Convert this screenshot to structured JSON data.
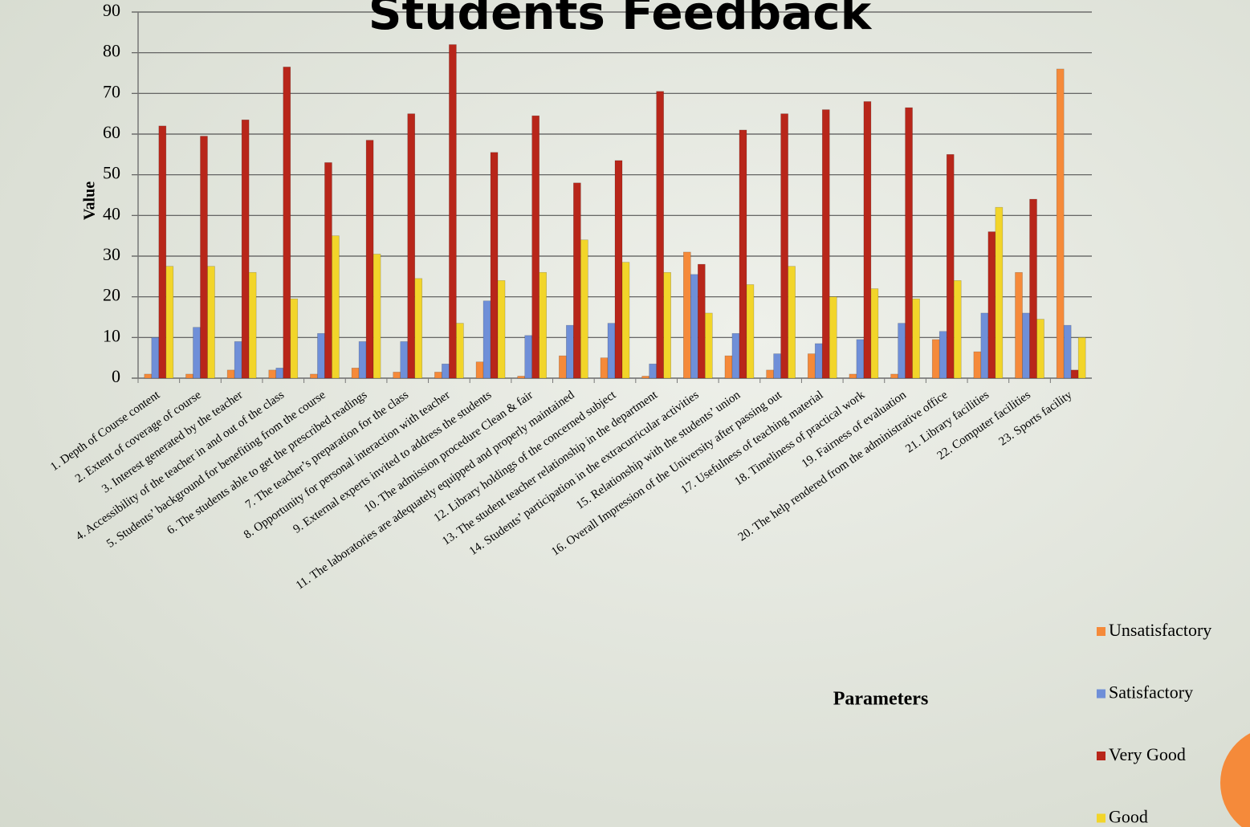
{
  "chart_data": {
    "type": "bar",
    "title": "Students Feedback",
    "y_label": "Value",
    "x_label": "Parameters",
    "categories": [
      "1. Depth of Course content",
      "2. Extent of coverage of course",
      "3. Interest generated by the teacher",
      "4. Accessibility of the teacher in and out of the class",
      "5. Students’ background for benefiting from the course",
      "6. The students able to get the prescribed readings",
      "7. The teacher’s preparation for the class",
      "8. Opportunity for personal interaction with teacher",
      "9. External experts invited to address the students",
      "10. The admission procedure Clean & fair",
      "11. The laboratories are adequately equipped and properly maintained",
      "12. Library holdings of the concerned subject",
      "13. The student teacher relationship in the department",
      "14. Students’ participation in the extracurricular activities",
      "15. Relationship with the students’ union",
      "16. Overall Impression of the University after passing out",
      "17. Usefulness of teaching material",
      "18. Timeliness of practical work",
      "19. Fairness of evaluation",
      "20. The help rendered from the administrative office",
      "21. Library facilities",
      "22. Computer facilities",
      "23. Sports facility"
    ],
    "series": [
      {
        "name": "Unsatisfactory",
        "color": "#f58a3a",
        "values": [
          1,
          1,
          2,
          2,
          1,
          2.5,
          1.5,
          1.5,
          4,
          0.5,
          5.5,
          5,
          0.5,
          31,
          5.5,
          2,
          6,
          1,
          1,
          9.5,
          6.5,
          26,
          76
        ]
      },
      {
        "name": "Satisfactory",
        "color": "#6f8fd8",
        "values": [
          10,
          12.5,
          9,
          2.5,
          11,
          9,
          9,
          3.5,
          19,
          10.5,
          13,
          13.5,
          3.5,
          25.5,
          11,
          6,
          8.5,
          9.5,
          13.5,
          11.5,
          16,
          16,
          13
        ]
      },
      {
        "name": "Very Good",
        "color": "#b8261a",
        "values": [
          62,
          59.5,
          63.5,
          76.5,
          53,
          58.5,
          65,
          82,
          55.5,
          64.5,
          48,
          53.5,
          70.5,
          28,
          61,
          65,
          66,
          68,
          66.5,
          55,
          36,
          44,
          2
        ]
      },
      {
        "name": "Good",
        "color": "#f2d52a",
        "values": [
          27.5,
          27.5,
          26,
          19.5,
          35,
          30.5,
          24.5,
          13.5,
          24,
          26,
          34,
          28.5,
          26,
          16,
          23,
          27.5,
          20,
          22,
          19.5,
          24,
          42,
          14.5,
          10
        ]
      }
    ],
    "ylim": [
      0,
      90
    ],
    "yticks": [
      0,
      10,
      20,
      30,
      40,
      50,
      60,
      70,
      80,
      90
    ],
    "grid": true,
    "legend": "right"
  }
}
